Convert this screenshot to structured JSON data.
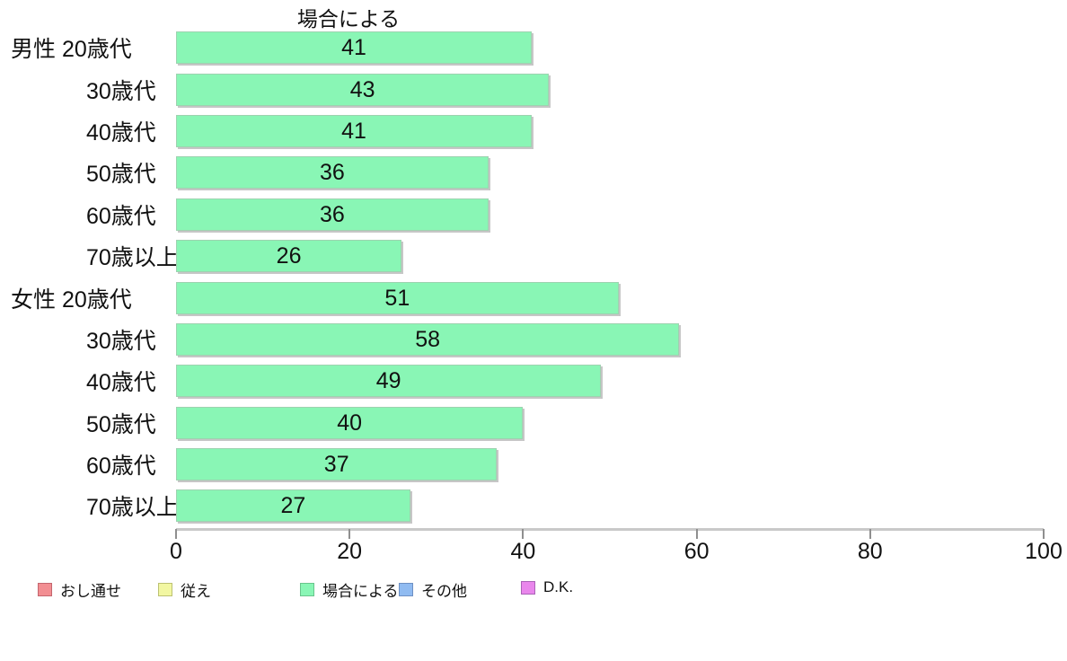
{
  "chart_data": {
    "type": "bar",
    "orientation": "horizontal",
    "title": "場合による",
    "categories": [
      "男性 20歳代",
      "30歳代",
      "40歳代",
      "50歳代",
      "60歳代",
      "70歳以上",
      "女性 20歳代",
      "30歳代",
      "40歳代",
      "50歳代",
      "60歳代",
      "70歳以上"
    ],
    "values": [
      41,
      43,
      41,
      36,
      36,
      26,
      51,
      58,
      49,
      40,
      37,
      27
    ],
    "xlabel": "",
    "ylabel": "",
    "xlim": [
      0,
      100
    ],
    "x_ticks": [
      "0",
      "20",
      "40",
      "60",
      "80",
      "100"
    ],
    "grid": false,
    "legend_position": "bottom",
    "bar_color": "#89f6b5",
    "bar_border_color": "#9ed2b0",
    "axis_color": "#c9c9c9"
  },
  "legend": {
    "items": [
      {
        "label": "おし通せ",
        "color": "#f28e92",
        "border": "#c4666e"
      },
      {
        "label": "従え",
        "color": "#f2f7a2",
        "border": "#bcc172"
      },
      {
        "label": "場合による",
        "color": "#89f6b5",
        "border": "#69c58c"
      },
      {
        "label": "その他",
        "color": "#90bbf1",
        "border": "#6e90c3"
      },
      {
        "label": "D.K.",
        "color": "#e986ec",
        "border": "#aa63b7"
      }
    ]
  }
}
